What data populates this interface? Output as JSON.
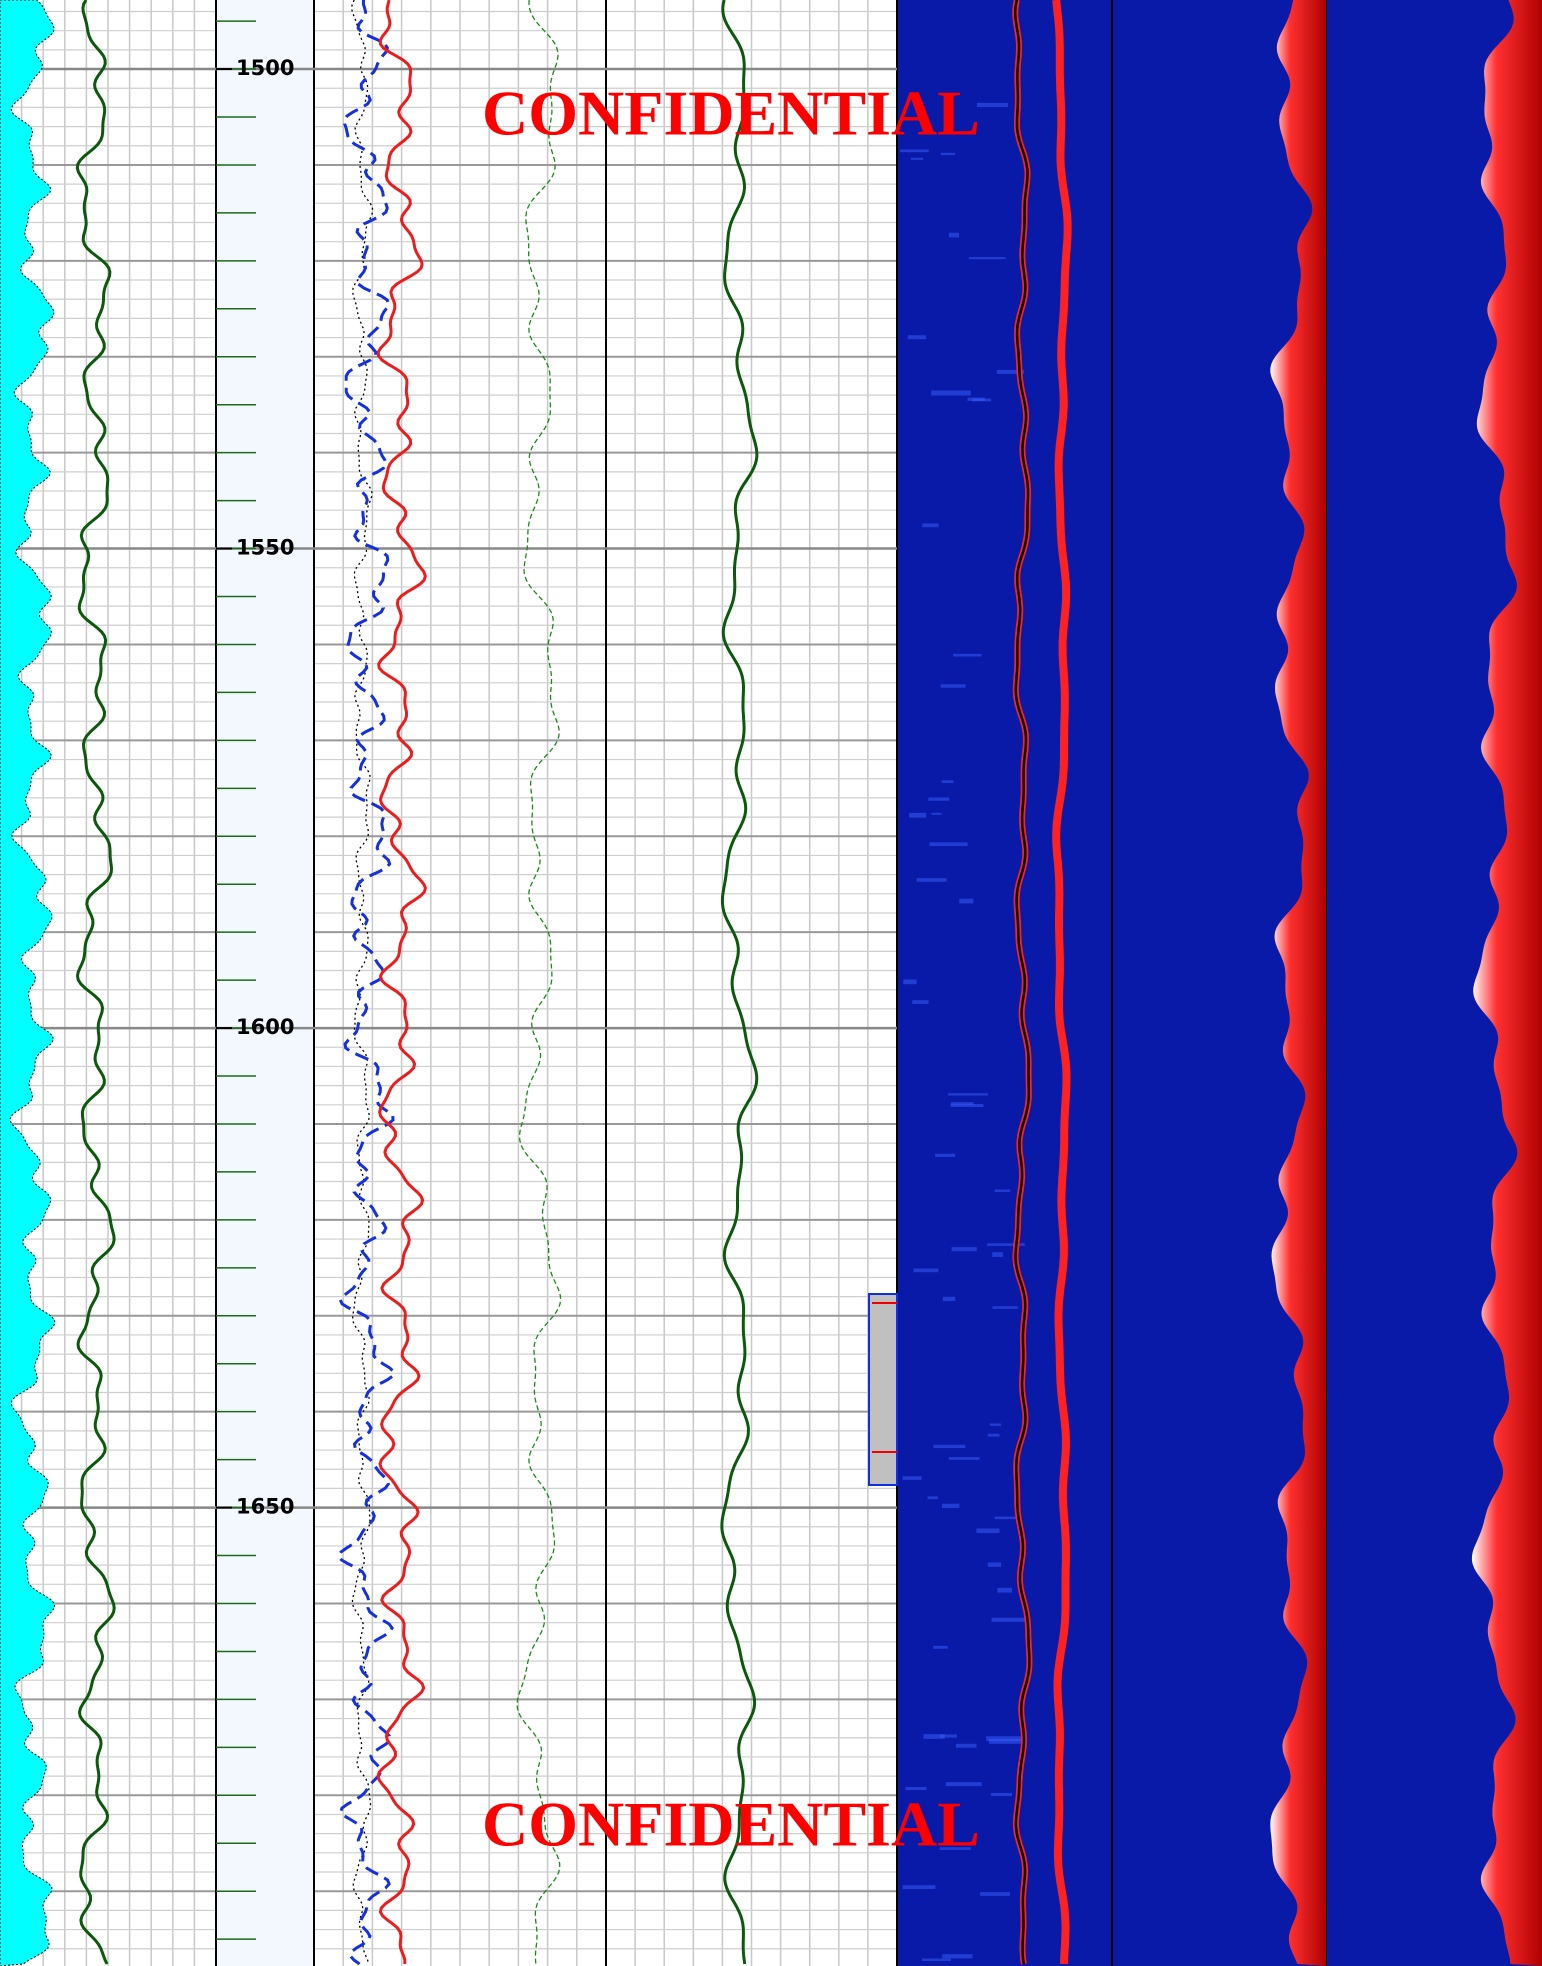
{
  "depth_track": {
    "range": [
      1492.8,
      1697.8
    ],
    "ticks": [
      1500,
      1550,
      1600,
      1650
    ]
  },
  "watermarks": [
    "CONFIDENTIAL",
    "CONFIDENTIAL"
  ]
}
